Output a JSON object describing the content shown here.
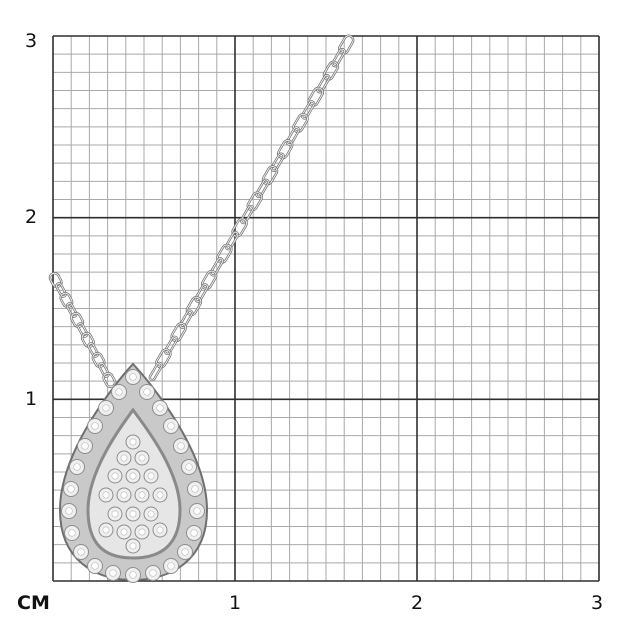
{
  "scale": {
    "unit_label": "CM",
    "x_labels": [
      "1",
      "2",
      "3"
    ],
    "y_labels": [
      "1",
      "2",
      "3"
    ],
    "subdivisions_per_unit": 10
  },
  "colors": {
    "minor_grid": "#a9a9a9",
    "major_grid": "#2e2e2e",
    "metal": "#c9c9c9",
    "metal_dark": "#6f6f6f"
  },
  "product": {
    "icon": "pear-shaped-diamond-halo-pendant-on-chain"
  }
}
